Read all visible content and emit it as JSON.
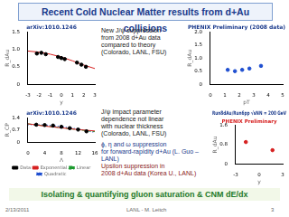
{
  "title": "Recent Cold Nuclear Matter results from d+Au collisions",
  "notes": [
    {
      "lines": [
        "New J/ψ suppression",
        "from 2008 d+Au data",
        "compared to theory",
        "(Colorado, LANL, FSU)"
      ]
    },
    {
      "lines": [
        "J/ψ impact parameter",
        "dependence not linear",
        "with nuclear thickness",
        "(Colorado, LANL, FSU)"
      ]
    },
    {
      "lines": [
        "ϕ, η and ω suppression",
        "for forward-rapidity d+Au (L. Guo – LANL)"
      ]
    },
    {
      "lines": [
        "Upsilon suppression in",
        "2008 d+Au data (Korea U., LANL)"
      ]
    }
  ],
  "caption": "Isolating & quantifying gluon saturation & CNM dE/dx",
  "footer": {
    "date": "2/13/2011",
    "author": "LANL - M. Leitch",
    "page": "3"
  },
  "chart_data": [
    {
      "type": "scatter",
      "title": "arXiv:1010.1246",
      "x_label": "y",
      "y_label": "R_dAu",
      "xlim": [
        -3,
        3
      ],
      "xticks": [
        -3,
        -2,
        -1,
        0,
        1,
        2,
        3
      ],
      "ylim": [
        0,
        1.5
      ],
      "yticks": [
        0,
        0.5,
        1,
        1.5
      ],
      "grid": false,
      "series": [
        {
          "color": "#000000",
          "marker": "circle",
          "x": [
            -2.2,
            -1.8,
            -1.4,
            -0.3,
            0,
            0.3,
            1.4,
            1.8,
            2.2
          ],
          "values": [
            0.88,
            0.9,
            0.86,
            0.78,
            0.75,
            0.72,
            0.62,
            0.56,
            0.5
          ]
        },
        {
          "type": "line",
          "color": "#d62020",
          "line_style": "solid",
          "x": [
            -3,
            -2,
            -1,
            0,
            1,
            2,
            3
          ],
          "values": [
            0.95,
            0.92,
            0.86,
            0.78,
            0.67,
            0.55,
            0.45
          ]
        }
      ]
    },
    {
      "type": "scatter",
      "title": "PHENIX Preliminary (2008 data)",
      "x_label": "pT",
      "y_label": "R_dAu",
      "xlim": [
        0,
        5
      ],
      "xticks": [
        0,
        1,
        2,
        3,
        4,
        5
      ],
      "ylim": [
        0,
        2
      ],
      "yticks": [
        0,
        0.5,
        1,
        1.5,
        2
      ],
      "grid": false,
      "series": [
        {
          "color": "#1f4fd0",
          "marker": "circle",
          "x": [
            1.2,
            1.7,
            2.2,
            2.7,
            3.5
          ],
          "values": [
            0.55,
            0.5,
            0.55,
            0.6,
            0.7
          ]
        }
      ]
    },
    {
      "type": "scatter",
      "title": "arXiv:1010.1246",
      "x_label": "Λ",
      "y_label": "R_CP",
      "xlim": [
        0,
        16
      ],
      "xticks": [
        0,
        4,
        8,
        12,
        16
      ],
      "ylim": [
        0,
        1.4
      ],
      "yticks": [
        0,
        0.7,
        1.4
      ],
      "grid": false,
      "legend": "bottom",
      "series": [
        {
          "name": "Data",
          "color": "#000000",
          "marker": "circle",
          "x": [
            2,
            4,
            6,
            8,
            10,
            12,
            14
          ],
          "values": [
            1.0,
            0.98,
            0.95,
            0.88,
            0.8,
            0.72,
            0.62
          ]
        },
        {
          "name": "Exponential",
          "type": "line",
          "color": "#d62020",
          "line_style": "solid",
          "x": [
            0,
            4,
            8,
            12,
            16
          ],
          "values": [
            1.05,
            0.92,
            0.82,
            0.72,
            0.64
          ]
        },
        {
          "name": "Linear",
          "type": "line",
          "color": "#1e9a30",
          "line_style": "dashed",
          "x": [
            0,
            16
          ],
          "values": [
            1.05,
            0.6
          ]
        },
        {
          "name": "Quadratic",
          "type": "line",
          "color": "#1f4fd0",
          "line_style": "dotted",
          "x": [
            0,
            4,
            8,
            12,
            16
          ],
          "values": [
            1.0,
            0.99,
            0.9,
            0.76,
            0.55
          ]
        }
      ]
    },
    {
      "type": "scatter",
      "title": "Run8dAu/Run6pp √sNN = 200 GeV",
      "subtitle": "PHENIX Preliminary",
      "x_label": "y",
      "y_label": "R_dAu",
      "xlim": [
        -3,
        3
      ],
      "xticks": [
        -3,
        0,
        3
      ],
      "ylim": [
        0,
        1.6
      ],
      "yticks": [
        0,
        0.8,
        1.6
      ],
      "grid": false,
      "series": [
        {
          "color": "#d62020",
          "marker": "circle",
          "x": [
            -1.7,
            1.7
          ],
          "values": [
            0.91,
            0.57
          ]
        }
      ]
    }
  ]
}
